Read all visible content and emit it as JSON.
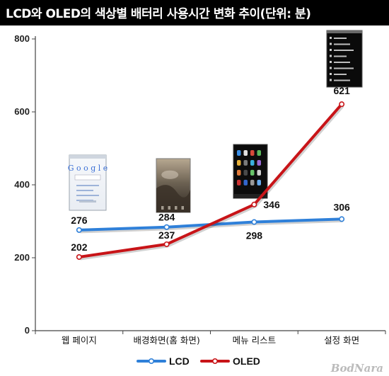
{
  "title": "LCD와 OLED의 색상별 배터리 사용시간 변화 추이(단위: 분)",
  "watermark": "BodNara",
  "colors": {
    "LCD": "#2f80d9",
    "OLED": "#c81418"
  },
  "chart_data": {
    "type": "line",
    "title": "LCD와 OLED의 색상별 배터리 사용시간 변화 추이(단위: 분)",
    "categories": [
      "웹 페이지",
      "배경화면(홈 화면)",
      "메뉴 리스트",
      "설정 화면"
    ],
    "series": [
      {
        "name": "LCD",
        "values": [
          276,
          284,
          298,
          306
        ]
      },
      {
        "name": "OLED",
        "values": [
          202,
          237,
          346,
          621
        ]
      }
    ],
    "ylim": [
      0,
      800
    ],
    "yticks": [
      0,
      200,
      400,
      600,
      800
    ],
    "grid": false,
    "legend": "bottom",
    "xlabel": "",
    "ylabel": ""
  }
}
